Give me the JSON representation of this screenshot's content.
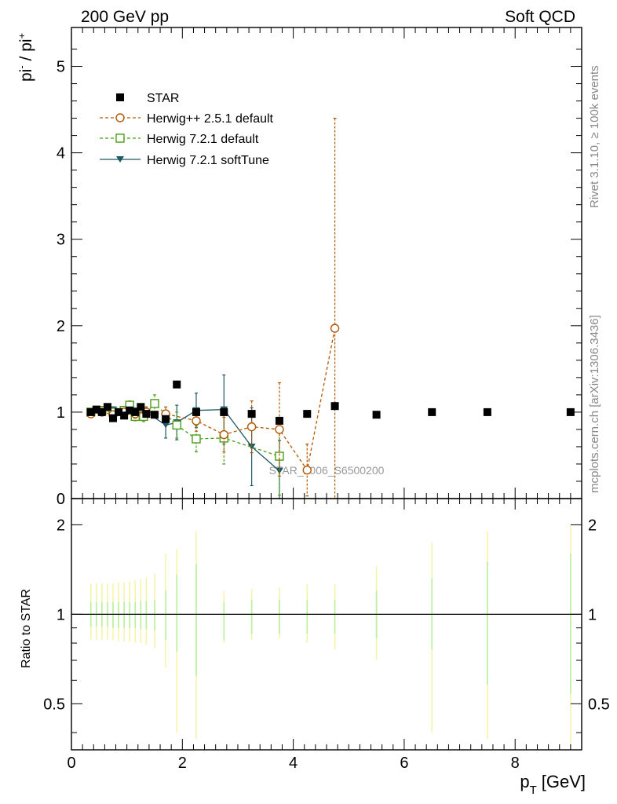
{
  "header": {
    "left": "200 GeV pp",
    "right": "Soft QCD"
  },
  "side_text": {
    "rivet": "Rivet 3.1.10, ≥ 100k events",
    "mcplots": "mcplots.cern.ch [arXiv:1306.3436]"
  },
  "watermark": "STAR_2006_S6500200",
  "colors": {
    "star": "#000000",
    "herwig_pp": "#b35806",
    "herwig_default": "#4d9e1a",
    "herwig_soft": "#1d5a66",
    "band_inner": "#b8f0a0",
    "band_outer": "#f5f5a8"
  },
  "chart_data": [
    {
      "type": "line",
      "panel": "main",
      "ylabel_main": "pi",
      "ylabel_sup1": "-",
      "ylabel_mid": " / pi",
      "ylabel_sup2": "+",
      "xlim": [
        0,
        9.2
      ],
      "ylim": [
        0,
        5.45
      ],
      "yticks": [
        0,
        1,
        2,
        3,
        4,
        5
      ],
      "ytick_labels": [
        "0",
        "1",
        "2",
        "3",
        "4",
        "5"
      ],
      "legend_position": "top-left",
      "series": [
        {
          "name": "STAR",
          "style": "marker",
          "x": [
            0.35,
            0.45,
            0.55,
            0.65,
            0.75,
            0.85,
            0.95,
            1.05,
            1.15,
            1.25,
            1.35,
            1.5,
            1.7,
            1.9,
            2.25,
            2.75,
            3.25,
            3.75,
            4.25,
            4.75,
            5.5,
            6.5,
            7.5,
            9.0
          ],
          "y": [
            1.0,
            1.03,
            1.0,
            1.06,
            0.93,
            1.0,
            0.96,
            1.02,
            1.0,
            1.06,
            0.98,
            0.97,
            0.92,
            1.32,
            1.0,
            1.0,
            0.98,
            0.9,
            0.98,
            1.07,
            0.97,
            1.0,
            1.0,
            1.0
          ]
        },
        {
          "name": "Herwig++ 2.5.1 default",
          "style": "dashed",
          "x": [
            0.35,
            0.55,
            0.75,
            0.95,
            1.15,
            1.35,
            1.7,
            2.25,
            2.75,
            3.25,
            3.75,
            4.25,
            4.75
          ],
          "y": [
            0.98,
            1.0,
            0.97,
            1.0,
            0.98,
            1.0,
            0.98,
            0.9,
            0.74,
            0.83,
            0.8,
            0.33,
            1.97
          ],
          "err": [
            0.03,
            0.03,
            0.03,
            0.04,
            0.05,
            0.06,
            0.08,
            0.12,
            0.2,
            0.3,
            0.54,
            0.3,
            2.43
          ]
        },
        {
          "name": "Herwig 7.2.1 default",
          "style": "dashed",
          "x": [
            0.35,
            0.55,
            0.75,
            0.95,
            1.05,
            1.15,
            1.3,
            1.5,
            1.9,
            2.25,
            2.75,
            3.75
          ],
          "y": [
            1.0,
            1.02,
            1.0,
            1.02,
            1.08,
            0.95,
            0.95,
            1.1,
            0.85,
            0.69,
            0.7,
            0.49
          ],
          "err": [
            0.02,
            0.03,
            0.03,
            0.04,
            0.05,
            0.05,
            0.06,
            0.1,
            0.15,
            0.15,
            0.3,
            0.45
          ]
        },
        {
          "name": "Herwig 7.2.1 softTune",
          "style": "solid",
          "x": [
            0.35,
            0.55,
            0.75,
            0.95,
            1.15,
            1.35,
            1.7,
            1.9,
            2.25,
            2.75,
            3.25,
            3.75
          ],
          "y": [
            1.0,
            1.02,
            1.03,
            1.0,
            1.0,
            1.0,
            0.85,
            0.88,
            1.02,
            1.03,
            0.6,
            0.32
          ],
          "err": [
            0.02,
            0.03,
            0.03,
            0.04,
            0.05,
            0.06,
            0.15,
            0.2,
            0.2,
            0.4,
            0.45,
            0.35
          ]
        }
      ]
    },
    {
      "type": "line",
      "panel": "ratio",
      "ylabel": "Ratio to STAR",
      "xlabel": "[GeV]",
      "xlabel_main": "p",
      "xlabel_sub": "T",
      "xlim": [
        0,
        9.2
      ],
      "ylim_log": [
        0.35,
        2.45
      ],
      "xticks": [
        0,
        2,
        4,
        6,
        8
      ],
      "xtick_labels": [
        "0",
        "2",
        "4",
        "6",
        "8"
      ],
      "yticks": [
        0.5,
        1,
        2
      ],
      "ytick_labels": [
        "0.5",
        "1",
        "2"
      ],
      "reference_line": 1.0,
      "bands": {
        "x": [
          0.35,
          0.45,
          0.55,
          0.65,
          0.75,
          0.85,
          0.95,
          1.05,
          1.15,
          1.25,
          1.35,
          1.5,
          1.7,
          1.9,
          2.25,
          2.75,
          3.25,
          3.75,
          4.25,
          4.75,
          5.5,
          6.5,
          7.5,
          9.0
        ],
        "inner_lo": [
          0.91,
          0.91,
          0.91,
          0.91,
          0.9,
          0.9,
          0.9,
          0.9,
          0.9,
          0.89,
          0.89,
          0.88,
          0.82,
          0.75,
          0.62,
          0.82,
          0.86,
          0.86,
          0.86,
          0.86,
          0.83,
          0.76,
          0.58,
          0.54
        ],
        "inner_hi": [
          1.1,
          1.1,
          1.1,
          1.1,
          1.1,
          1.1,
          1.1,
          1.1,
          1.1,
          1.11,
          1.11,
          1.12,
          1.2,
          1.36,
          1.48,
          1.1,
          1.12,
          1.12,
          1.12,
          1.12,
          1.2,
          1.32,
          1.5,
          1.6
        ],
        "outer_lo": [
          0.82,
          0.82,
          0.82,
          0.82,
          0.82,
          0.81,
          0.81,
          0.81,
          0.8,
          0.8,
          0.79,
          0.77,
          0.66,
          0.4,
          0.38,
          0.8,
          0.82,
          0.83,
          0.8,
          0.76,
          0.7,
          0.4,
          0.38,
          0.36
        ],
        "outer_hi": [
          1.27,
          1.27,
          1.27,
          1.27,
          1.27,
          1.28,
          1.28,
          1.29,
          1.3,
          1.31,
          1.33,
          1.37,
          1.6,
          1.65,
          1.9,
          1.2,
          1.22,
          1.23,
          1.26,
          1.26,
          1.45,
          1.75,
          1.9,
          2.0
        ]
      }
    }
  ]
}
